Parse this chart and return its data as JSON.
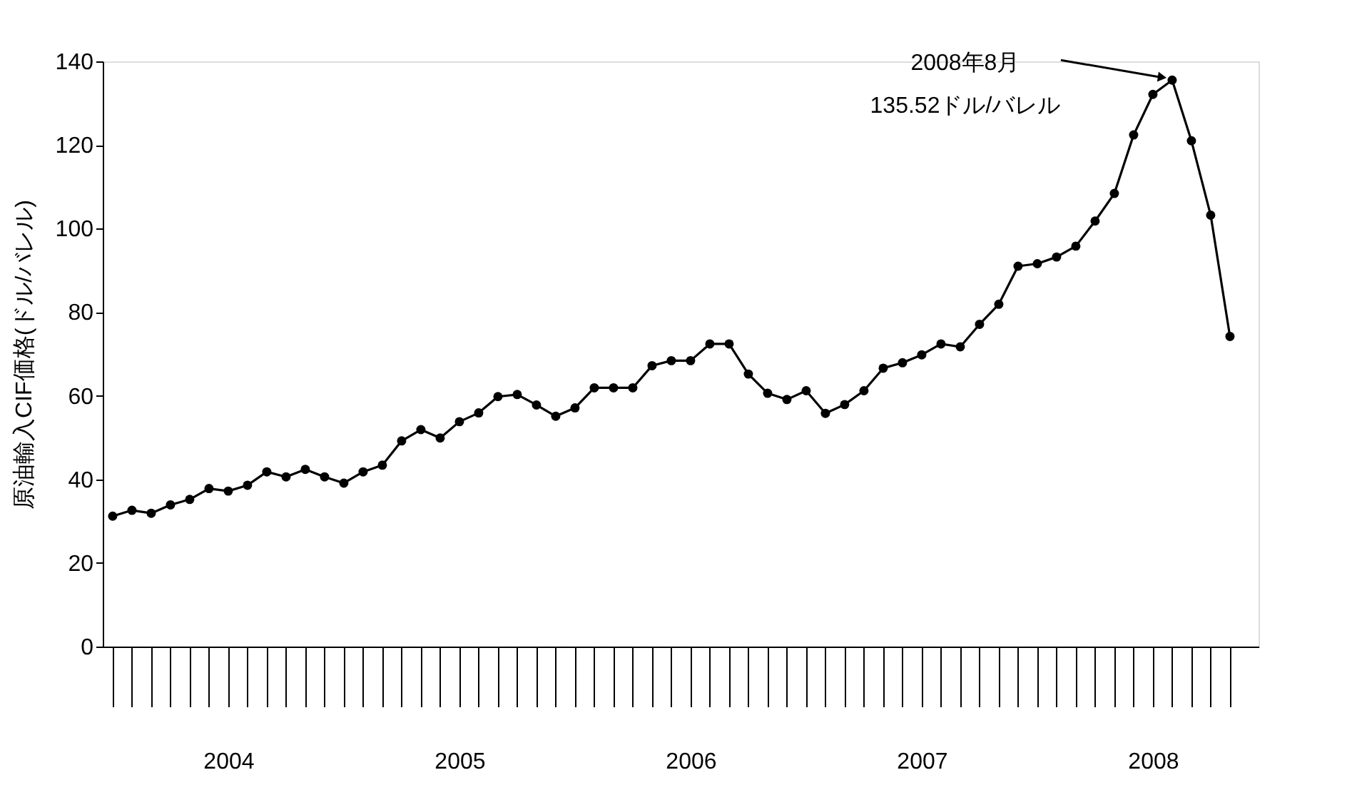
{
  "chart_data": {
    "type": "line",
    "ylabel": "原油輸入CIF価格(ドル/バレル)",
    "x": [
      "2004-01",
      "2004-02",
      "2004-03",
      "2004-04",
      "2004-05",
      "2004-06",
      "2004-07",
      "2004-08",
      "2004-09",
      "2004-10",
      "2004-11",
      "2004-12",
      "2005-01",
      "2005-02",
      "2005-03",
      "2005-04",
      "2005-05",
      "2005-06",
      "2005-07",
      "2005-08",
      "2005-09",
      "2005-10",
      "2005-11",
      "2005-12",
      "2006-01",
      "2006-02",
      "2006-03",
      "2006-04",
      "2006-05",
      "2006-06",
      "2006-07",
      "2006-08",
      "2006-09",
      "2006-10",
      "2006-11",
      "2006-12",
      "2007-01",
      "2007-02",
      "2007-03",
      "2007-04",
      "2007-05",
      "2007-06",
      "2007-07",
      "2007-08",
      "2007-09",
      "2007-10",
      "2007-11",
      "2007-12",
      "2008-01",
      "2008-02",
      "2008-03",
      "2008-04",
      "2008-05",
      "2008-06",
      "2008-07",
      "2008-08",
      "2008-09",
      "2008-10",
      "2008-11"
    ],
    "series": [
      {
        "color": "#000000",
        "values": [
          31.2,
          32.6,
          31.9,
          33.9,
          35.2,
          37.8,
          37.2,
          38.6,
          41.8,
          40.6,
          42.4,
          40.6,
          39.1,
          41.8,
          43.4,
          49.2,
          51.9,
          49.9,
          53.8,
          55.9,
          59.8,
          60.3,
          57.8,
          55.1,
          57.1,
          61.9,
          61.9,
          61.9,
          67.2,
          68.4,
          68.4,
          72.4,
          72.4,
          65.2,
          60.6,
          59.1,
          61.2,
          55.8,
          57.9,
          61.2,
          66.6,
          67.9,
          69.8,
          72.4,
          71.7,
          77.1,
          81.9,
          91.0,
          91.6,
          93.2,
          95.8,
          101.8,
          108.4,
          122.4,
          132.1,
          135.52,
          121.0,
          103.2,
          74.2
        ]
      }
    ],
    "xlim": [
      "2003-12-16",
      "2008-12-16"
    ],
    "xticks": [
      {
        "value": "2004-07-01",
        "label": "2004"
      },
      {
        "value": "2005-07-01",
        "label": "2005"
      },
      {
        "value": "2006-07-01",
        "label": "2006"
      },
      {
        "value": "2007-07-01",
        "label": "2007"
      },
      {
        "value": "2008-07-01",
        "label": "2008"
      }
    ],
    "ylim": [
      0,
      140
    ],
    "yticks": [
      0,
      20,
      40,
      60,
      80,
      100,
      120,
      140
    ],
    "grid": false,
    "legend": false,
    "marker": "circle",
    "line_style": "solid",
    "annotations": [
      {
        "text": "2008年8月\n135.52ドル/バレル",
        "x": "2008-08",
        "y": 135.52
      }
    ]
  }
}
